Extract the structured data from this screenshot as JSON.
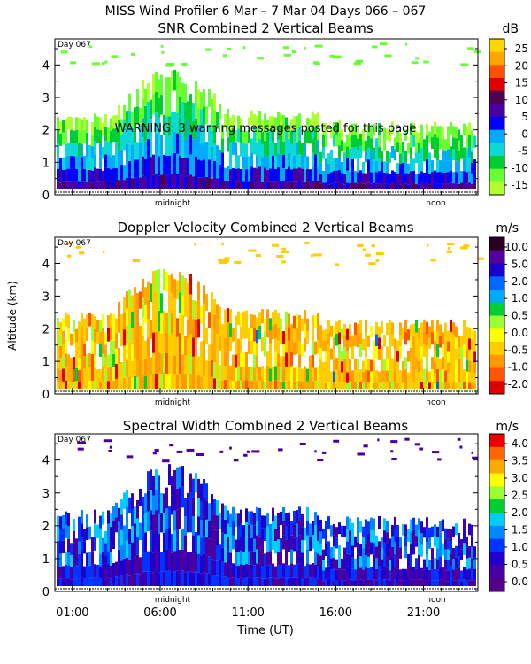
{
  "header": {
    "title": "MISS Wind Profiler    6 Mar –  7 Mar 04 Days 066 – 067"
  },
  "chart_data": [
    {
      "type": "heatmap",
      "title": "SNR Combined 2 Vertical Beams",
      "units": "dB",
      "ylabel": "",
      "xlabel": "",
      "day_label": "Day 067",
      "ylim": [
        0,
        4.8
      ],
      "yticks": [
        0,
        1,
        2,
        3,
        4
      ],
      "xticks": [
        {
          "x": 1,
          "label": ""
        },
        {
          "x": 6,
          "label": "midnight"
        },
        {
          "x": 11,
          "label": ""
        },
        {
          "x": 16,
          "label": ""
        },
        {
          "x": 21,
          "label": "noon"
        }
      ],
      "warning": "WARNING: 3 warning messages posted for this page",
      "colorbar": {
        "labels": [
          "25",
          "20",
          "15",
          "10",
          "5",
          "0",
          "-5",
          "-10",
          "-15"
        ],
        "colors": [
          "#ffd700",
          "#ffa500",
          "#ff5000",
          "#e00000",
          "#500050",
          "#4a00a0",
          "#0000ff",
          "#00aaff",
          "#0cd8d8",
          "#00cc33",
          "#66ff33",
          "#b0ff30"
        ]
      }
    },
    {
      "type": "heatmap",
      "title": "Doppler Velocity Combined 2 Vertical Beams",
      "units": "m/s",
      "ylabel": "Altitude (km)",
      "xlabel": "",
      "day_label": "Day 067",
      "ylim": [
        0,
        4.8
      ],
      "yticks": [
        0,
        1,
        2,
        3,
        4
      ],
      "xticks": [
        {
          "x": 1,
          "label": ""
        },
        {
          "x": 6,
          "label": "midnight"
        },
        {
          "x": 11,
          "label": ""
        },
        {
          "x": 16,
          "label": ""
        },
        {
          "x": 21,
          "label": "noon"
        }
      ],
      "colorbar": {
        "labels": [
          "10.0",
          "5.0",
          "2.0",
          "1.0",
          "0.5",
          "0.0",
          "-0.5",
          "-1.0",
          "-2.0"
        ],
        "colors": [
          "#2a0020",
          "#5500a0",
          "#1a00cc",
          "#0066ff",
          "#00aaff",
          "#00cc33",
          "#99ff33",
          "#ffff00",
          "#ffcc00",
          "#ff9900",
          "#ff5500",
          "#dd0000"
        ]
      }
    },
    {
      "type": "heatmap",
      "title": "Spectral Width Combined 2 Vertical Beams",
      "units": "m/s",
      "ylabel": "",
      "xlabel": "Time (UT)",
      "day_label": "Day 067",
      "ylim": [
        0,
        4.8
      ],
      "yticks": [
        0,
        1,
        2,
        3,
        4
      ],
      "xticks": [
        {
          "x": 1,
          "label": "01:00"
        },
        {
          "x": 6,
          "label": "06:00"
        },
        {
          "x": 11,
          "label": "11:00"
        },
        {
          "x": 16,
          "label": "16:00"
        },
        {
          "x": 21,
          "label": "21:00"
        }
      ],
      "sub_labels": [
        "midnight",
        "noon"
      ],
      "colorbar": {
        "labels": [
          "4.0",
          "3.5",
          "3.0",
          "2.5",
          "2.0",
          "1.5",
          "1.0",
          "0.5",
          "0.0"
        ],
        "colors": [
          "#ee0000",
          "#ff6600",
          "#ffaa00",
          "#ffff00",
          "#99ff33",
          "#00cc33",
          "#00ccff",
          "#0088ff",
          "#0033ff",
          "#2000cc",
          "#4a00a0",
          "#550088"
        ]
      }
    }
  ]
}
